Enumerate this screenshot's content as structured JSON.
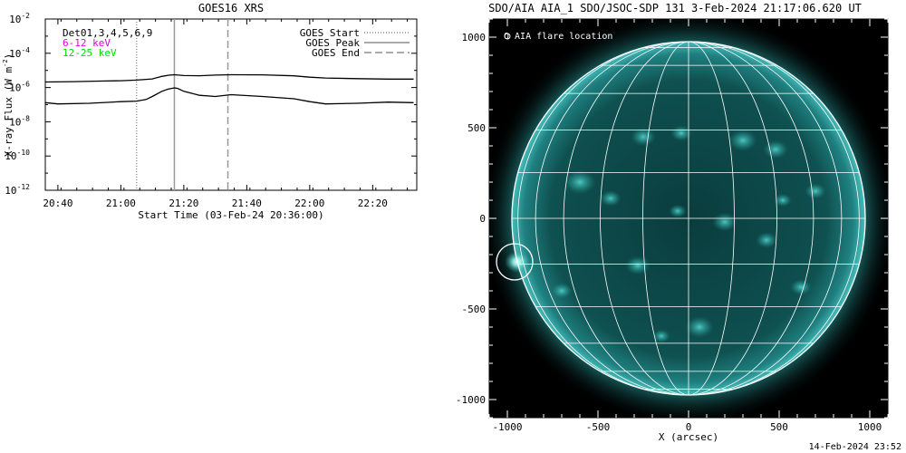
{
  "chart_data": [
    {
      "type": "line",
      "title": "GOES16 XRS",
      "xlabel": "Start Time (03-Feb-24 20:36:00)",
      "ylabel_main": "X-ray Flux (W m",
      "ylabel_sup": "-2",
      "ylabel_close": ")",
      "x_ticks": [
        "20:40",
        "21:00",
        "21:20",
        "21:40",
        "22:00",
        "22:20"
      ],
      "y_scale": "log",
      "ylim": [
        1e-12,
        0.01
      ],
      "y_tick_base": "10",
      "y_tick_exponents": [
        "-12",
        "-10",
        "-8",
        "-6",
        "-4",
        "-2"
      ],
      "xlim": [
        "20:36",
        "22:34"
      ],
      "detector_label": "Det01,3,4,5,6,9",
      "legend_left": [
        {
          "label": "6-12 keV",
          "color": "#e000e0"
        },
        {
          "label": "12-25 keV",
          "color": "#00dd00"
        }
      ],
      "legend_right": [
        {
          "label": "GOES Start",
          "style": "dotted"
        },
        {
          "label": "GOES Peak",
          "style": "solid"
        },
        {
          "label": "GOES End",
          "style": "dashed"
        }
      ],
      "markers": {
        "goes_start": "21:05",
        "goes_peak": "21:17",
        "goes_end": "21:34"
      },
      "series": [
        {
          "id": "long",
          "color": "#000000",
          "x": [
            "20:36",
            "20:45",
            "20:55",
            "21:00",
            "21:05",
            "21:10",
            "21:13",
            "21:15",
            "21:17",
            "21:20",
            "21:25",
            "21:30",
            "21:35",
            "21:45",
            "21:55",
            "22:00",
            "22:05",
            "22:15",
            "22:25",
            "22:33"
          ],
          "values": [
            2.1e-06,
            2.2e-06,
            2.4e-06,
            2.5e-06,
            2.7e-06,
            3.2e-06,
            4.5e-06,
            5.2e-06,
            5.6e-06,
            5e-06,
            4.9e-06,
            5.3e-06,
            5.6e-06,
            5.5e-06,
            4.8e-06,
            4e-06,
            3.6e-06,
            3.3e-06,
            3.1e-06,
            3.1e-06
          ]
        },
        {
          "id": "short",
          "color": "#000000",
          "x": [
            "20:36",
            "20:40",
            "20:50",
            "21:00",
            "21:05",
            "21:08",
            "21:10",
            "21:13",
            "21:15",
            "21:17",
            "21:18",
            "21:20",
            "21:25",
            "21:30",
            "21:35",
            "21:45",
            "21:55",
            "22:00",
            "22:05",
            "22:15",
            "22:25",
            "22:33"
          ],
          "values": [
            1.3e-07,
            1.1e-07,
            1.2e-07,
            1.5e-07,
            1.6e-07,
            2e-07,
            3e-07,
            6e-07,
            8e-07,
            9.5e-07,
            9e-07,
            6e-07,
            3.5e-07,
            3e-07,
            3.8e-07,
            3e-07,
            2.2e-07,
            1.5e-07,
            1.1e-07,
            1.2e-07,
            1.4e-07,
            1.3e-07
          ]
        }
      ]
    },
    {
      "type": "image",
      "title": "SDO/AIA AIA_1 SDO/JSOC-SDP 131  3-Feb-2024 21:17:06.620 UT",
      "xlabel": "X (arcsec)",
      "ylabel": "",
      "xlim": [
        -1100,
        1100
      ],
      "ylim": [
        -1100,
        1100
      ],
      "x_ticks": [
        -1000,
        -500,
        0,
        500,
        1000
      ],
      "y_ticks": [
        -1000,
        -500,
        0,
        500,
        1000
      ],
      "legend": "O AIA flare location",
      "solar_radius_arcsec": 975,
      "flare_location": {
        "x": -960,
        "y": -240,
        "radius_arcsec": 100
      },
      "grid": true,
      "colors": {
        "background": "#000000",
        "disk": "#0c4a4a",
        "limb": "#2aa5a5",
        "active": "#3fc6c0",
        "grid": "#ffffff"
      },
      "footer": "14-Feb-2024 23:52"
    }
  ]
}
